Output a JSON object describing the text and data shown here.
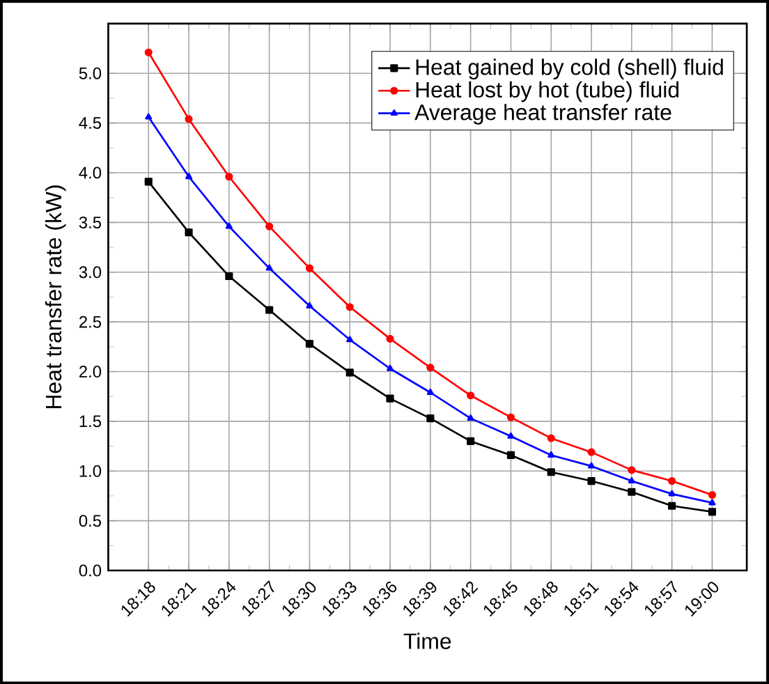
{
  "chart_data": {
    "type": "line",
    "xlabel": "Time",
    "ylabel": "Heat transfer rate (kW)",
    "categories": [
      "18:18",
      "18:21",
      "18:24",
      "18:27",
      "18:30",
      "18:33",
      "18:36",
      "18:39",
      "18:42",
      "18:45",
      "18:48",
      "18:51",
      "18:54",
      "18:57",
      "19:00"
    ],
    "series": [
      {
        "name": "Heat gained by cold (shell) fluid",
        "color": "#000000",
        "marker": "square",
        "values": [
          3.91,
          3.4,
          2.96,
          2.62,
          2.28,
          1.99,
          1.73,
          1.53,
          1.3,
          1.16,
          0.99,
          0.9,
          0.79,
          0.65,
          0.59
        ]
      },
      {
        "name": "Heat lost by hot (tube) fluid",
        "color": "#ff0000",
        "marker": "circle",
        "values": [
          5.21,
          4.54,
          3.96,
          3.46,
          3.04,
          2.65,
          2.33,
          2.04,
          1.76,
          1.54,
          1.33,
          1.19,
          1.01,
          0.9,
          0.76
        ]
      },
      {
        "name": "Average heat transfer rate",
        "color": "#0000ff",
        "marker": "triangle",
        "values": [
          4.56,
          3.96,
          3.46,
          3.04,
          2.66,
          2.32,
          2.03,
          1.79,
          1.53,
          1.35,
          1.16,
          1.05,
          0.9,
          0.77,
          0.68
        ]
      }
    ],
    "ylim": [
      0,
      5.5
    ],
    "yticks": [
      {
        "value": 0,
        "label": "0.0"
      },
      {
        "value": 0.5,
        "label": "0.5"
      },
      {
        "value": 1,
        "label": "1.0"
      },
      {
        "value": 1.5,
        "label": "1.5"
      },
      {
        "value": 2,
        "label": "2.0"
      },
      {
        "value": 2.5,
        "label": "2.5"
      },
      {
        "value": 3,
        "label": "3.0"
      },
      {
        "value": 3.5,
        "label": "3.5"
      },
      {
        "value": 4,
        "label": "4.0"
      },
      {
        "value": 4.5,
        "label": "4.5"
      },
      {
        "value": 5,
        "label": "5.0"
      }
    ],
    "grid": true,
    "legend": "top right",
    "line_style": "solid"
  }
}
